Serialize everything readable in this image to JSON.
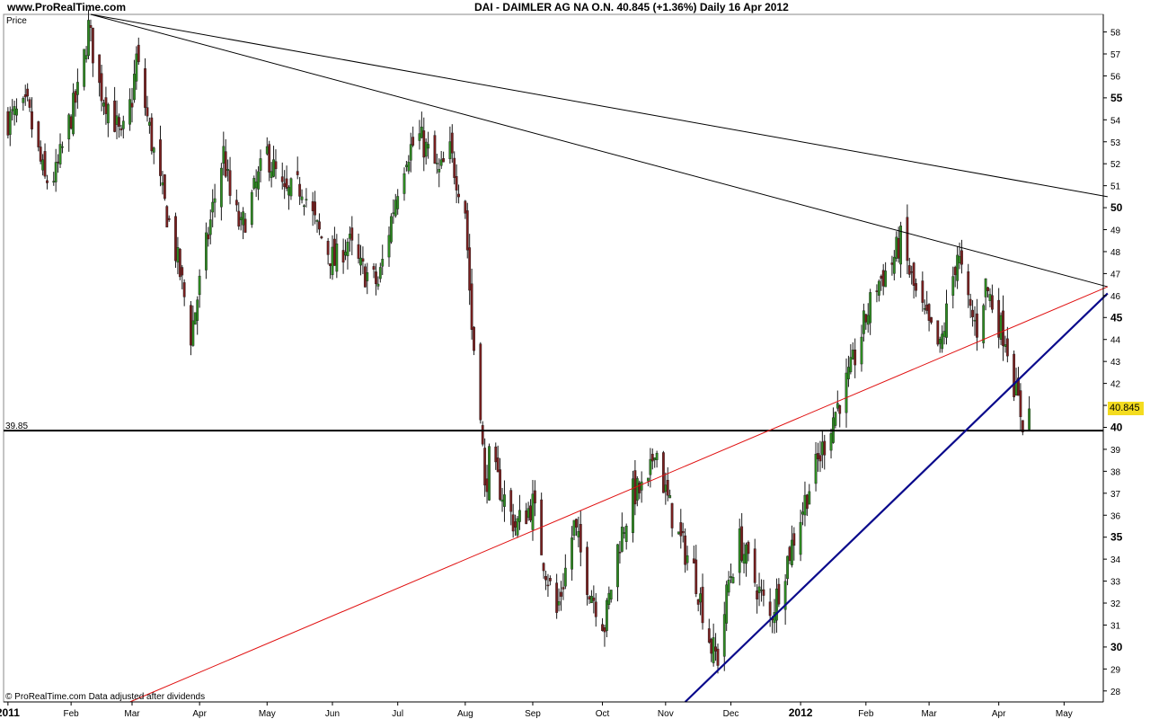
{
  "header": {
    "site": "www.ProRealTime.com",
    "title": "DAI - DAIMLER AG NA O.N.    40.845 (+1.36%)    Daily  16 Apr 2012"
  },
  "panel_label": "Price",
  "footer": "© ProRealTime.com  Data adjusted after dividends",
  "last_price_badge": "40.845",
  "support_label": "39.85",
  "colors": {
    "bull": "#2e8b22",
    "bear": "#7a1f1f",
    "support": "#000000",
    "red_trend": "#e01010",
    "blue_trend": "#0a0a8c",
    "black_trend": "#000000",
    "badge": "#f4dc1f"
  },
  "chart_data": {
    "type": "candlestick",
    "title": "DAI - DAIMLER AG NA O.N.",
    "last": 40.845,
    "change_pct": "+1.36%",
    "interval": "Daily",
    "date": "16 Apr 2012",
    "ylim": [
      27.5,
      58.8
    ],
    "xlim": [
      "2011-01-01",
      "2012-05-20"
    ],
    "y_ticks": [
      28,
      29,
      30,
      31,
      32,
      33,
      34,
      35,
      36,
      37,
      38,
      39,
      40,
      41,
      42,
      43,
      44,
      45,
      46,
      47,
      48,
      49,
      50,
      51,
      52,
      53,
      54,
      55,
      56,
      57,
      58
    ],
    "y_bold_ticks": [
      30,
      35,
      40,
      45,
      50,
      55
    ],
    "x_ticks": [
      {
        "date": "2011-01-03",
        "label": "2011",
        "bold": true
      },
      {
        "date": "2011-02-01",
        "label": "Feb"
      },
      {
        "date": "2011-03-01",
        "label": "Mar"
      },
      {
        "date": "2011-04-01",
        "label": "Apr"
      },
      {
        "date": "2011-05-02",
        "label": "May"
      },
      {
        "date": "2011-06-01",
        "label": "Jun"
      },
      {
        "date": "2011-07-01",
        "label": "Jul"
      },
      {
        "date": "2011-08-01",
        "label": "Aug"
      },
      {
        "date": "2011-09-01",
        "label": "Sep"
      },
      {
        "date": "2011-10-03",
        "label": "Oct"
      },
      {
        "date": "2011-11-01",
        "label": "Nov"
      },
      {
        "date": "2011-12-01",
        "label": "Dec"
      },
      {
        "date": "2012-01-02",
        "label": "2012",
        "bold": true
      },
      {
        "date": "2012-02-01",
        "label": "Feb"
      },
      {
        "date": "2012-03-01",
        "label": "Mar"
      },
      {
        "date": "2012-04-02",
        "label": "Apr"
      },
      {
        "date": "2012-05-02",
        "label": "May"
      }
    ],
    "close_anchors": [
      [
        "2011-01-03",
        54.0
      ],
      [
        "2011-01-12",
        54.5
      ],
      [
        "2011-01-20",
        51.2
      ],
      [
        "2011-01-25",
        51.5
      ],
      [
        "2011-02-01",
        54.2
      ],
      [
        "2011-02-05",
        55.5
      ],
      [
        "2011-02-09",
        58.2
      ],
      [
        "2011-02-14",
        55.5
      ],
      [
        "2011-02-20",
        54.3
      ],
      [
        "2011-02-24",
        53.0
      ],
      [
        "2011-03-01",
        55.0
      ],
      [
        "2011-03-03",
        56.8
      ],
      [
        "2011-03-10",
        53.0
      ],
      [
        "2011-03-15",
        50.5
      ],
      [
        "2011-03-20",
        48.5
      ],
      [
        "2011-03-24",
        46.5
      ],
      [
        "2011-03-28",
        44.2
      ],
      [
        "2011-04-01",
        46.5
      ],
      [
        "2011-04-08",
        50.5
      ],
      [
        "2011-04-12",
        52.5
      ],
      [
        "2011-04-15",
        50.5
      ],
      [
        "2011-04-20",
        49.0
      ],
      [
        "2011-04-27",
        51.0
      ],
      [
        "2011-05-02",
        52.5
      ],
      [
        "2011-05-10",
        50.5
      ],
      [
        "2011-05-18",
        51.0
      ],
      [
        "2011-05-25",
        49.0
      ],
      [
        "2011-06-02",
        47.5
      ],
      [
        "2011-06-08",
        48.5
      ],
      [
        "2011-06-14",
        47.2
      ],
      [
        "2011-06-22",
        46.5
      ],
      [
        "2011-07-01",
        51.0
      ],
      [
        "2011-07-05",
        52.5
      ],
      [
        "2011-07-11",
        53.2
      ],
      [
        "2011-07-15",
        52.5
      ],
      [
        "2011-07-20",
        51.5
      ],
      [
        "2011-07-25",
        52.5
      ],
      [
        "2011-08-01",
        50.0
      ],
      [
        "2011-08-04",
        44.5
      ],
      [
        "2011-08-08",
        41.0
      ],
      [
        "2011-08-10",
        37.0
      ],
      [
        "2011-08-12",
        38.5
      ],
      [
        "2011-08-18",
        37.0
      ],
      [
        "2011-08-24",
        35.5
      ],
      [
        "2011-09-01",
        36.5
      ],
      [
        "2011-09-06",
        34.0
      ],
      [
        "2011-09-12",
        31.5
      ],
      [
        "2011-09-20",
        35.5
      ],
      [
        "2011-09-26",
        33.0
      ],
      [
        "2011-10-04",
        31.0
      ],
      [
        "2011-10-10",
        34.5
      ],
      [
        "2011-10-17",
        37.0
      ],
      [
        "2011-10-24",
        37.2
      ],
      [
        "2011-10-27",
        39.3
      ],
      [
        "2011-11-01",
        37.0
      ],
      [
        "2011-11-07",
        35.0
      ],
      [
        "2011-11-14",
        33.5
      ],
      [
        "2011-11-22",
        30.0
      ],
      [
        "2011-11-25",
        29.5
      ],
      [
        "2011-11-30",
        33.0
      ],
      [
        "2011-12-05",
        34.8
      ],
      [
        "2011-12-12",
        33.0
      ],
      [
        "2011-12-19",
        31.3
      ],
      [
        "2011-12-27",
        34.0
      ],
      [
        "2012-01-05",
        37.0
      ],
      [
        "2012-01-12",
        39.0
      ],
      [
        "2012-01-17",
        40.5
      ],
      [
        "2012-01-25",
        42.5
      ],
      [
        "2012-02-01",
        45.0
      ],
      [
        "2012-02-06",
        46.5
      ],
      [
        "2012-02-13",
        47.5
      ],
      [
        "2012-02-17",
        48.5
      ],
      [
        "2012-02-24",
        46.0
      ],
      [
        "2012-03-01",
        44.5
      ],
      [
        "2012-03-06",
        43.5
      ],
      [
        "2012-03-14",
        48.0
      ],
      [
        "2012-03-19",
        45.5
      ],
      [
        "2012-03-23",
        44.5
      ],
      [
        "2012-03-27",
        46.5
      ],
      [
        "2012-04-03",
        44.5
      ],
      [
        "2012-04-05",
        44.2
      ],
      [
        "2012-04-10",
        41.5
      ],
      [
        "2012-04-13",
        40.3
      ],
      [
        "2012-04-16",
        40.845
      ]
    ],
    "horizontal_lines": [
      {
        "y": 39.85,
        "label": "39.85",
        "color": "#000000"
      }
    ],
    "trend_lines": [
      {
        "name": "",
        "color": "#000000",
        "from": [
          "2011-02-10",
          58.8
        ],
        "to": [
          "2012-05-22",
          50.5
        ]
      },
      {
        "name": "",
        "color": "#000000",
        "from": [
          "2011-02-10",
          58.8
        ],
        "to": [
          "2012-05-22",
          46.4
        ]
      },
      {
        "name": "",
        "color": "#e01010",
        "from": [
          "2011-02-28",
          27.5
        ],
        "to": [
          "2012-05-22",
          46.4
        ]
      },
      {
        "name": "",
        "color": "#0a0a8c",
        "from": [
          "2011-11-10",
          27.5
        ],
        "to": [
          "2012-05-22",
          46.1
        ]
      }
    ]
  }
}
